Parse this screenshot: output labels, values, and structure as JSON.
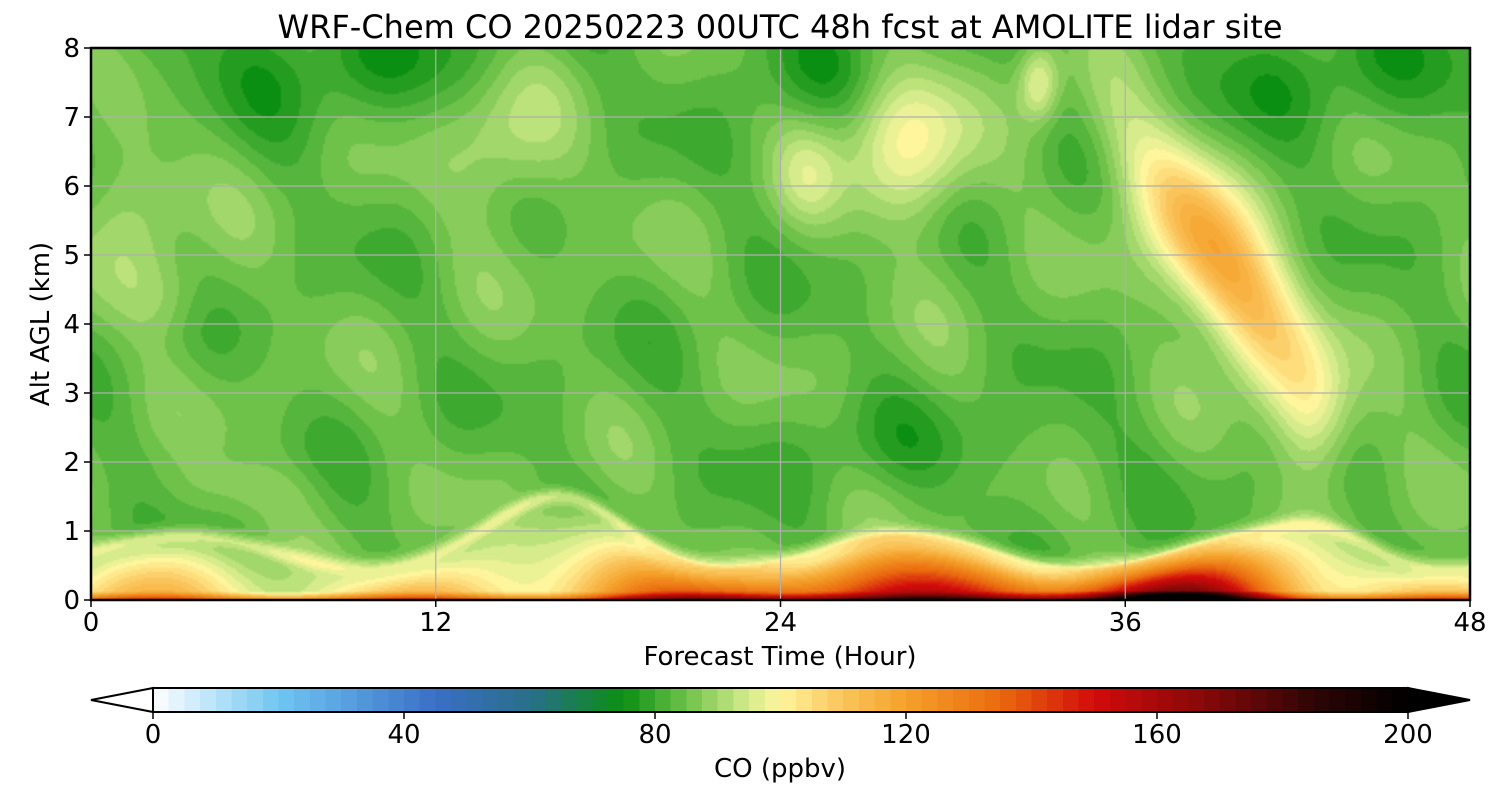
{
  "chart_data": {
    "type": "heatmap",
    "title": "WRF-Chem CO  20250223 00UTC 48h fcst at AMOLITE lidar site",
    "xlabel": "Forecast Time (Hour)",
    "ylabel": "Alt AGL (km)",
    "xlim": [
      0,
      48
    ],
    "ylim": [
      0,
      8
    ],
    "xticks": [
      0,
      12,
      24,
      36,
      48
    ],
    "yticks": [
      0,
      1,
      2,
      3,
      4,
      5,
      6,
      7,
      8
    ],
    "grid": true,
    "colorbar": {
      "label": "CO  (ppbv)",
      "orientation": "horizontal",
      "range": [
        0,
        200
      ],
      "ticks": [
        0,
        40,
        80,
        120,
        160,
        200
      ],
      "extend": "both",
      "stops": [
        {
          "value": 0,
          "color": "#ffffff"
        },
        {
          "value": 20,
          "color": "#6fc6f2"
        },
        {
          "value": 45,
          "color": "#3a6fc6"
        },
        {
          "value": 60,
          "color": "#2a6f8a"
        },
        {
          "value": 75,
          "color": "#0b8f12"
        },
        {
          "value": 85,
          "color": "#6ec24a"
        },
        {
          "value": 95,
          "color": "#d6ec8c"
        },
        {
          "value": 100,
          "color": "#fff59d"
        },
        {
          "value": 110,
          "color": "#fac45a"
        },
        {
          "value": 120,
          "color": "#f4a02a"
        },
        {
          "value": 135,
          "color": "#ea6a0e"
        },
        {
          "value": 150,
          "color": "#d20b0b"
        },
        {
          "value": 170,
          "color": "#7a0808"
        },
        {
          "value": 185,
          "color": "#2e0505"
        },
        {
          "value": 200,
          "color": "#000000"
        }
      ]
    },
    "field_description": "Estimated CO concentration (ppbv) over forecast hour and altitude; background ~80-90 ppbv aloft, surface layer 110-190 ppbv, elevated plume ~120 ppbv near hour 38-40 at 4-6 km",
    "features": [
      {
        "hour": 38.5,
        "alt_km": 5.0,
        "peak_ppbv": 120
      },
      {
        "hour": 28.5,
        "alt_km": 6.6,
        "peak_ppbv": 99
      },
      {
        "hour": 14.5,
        "alt_km": 6.6,
        "peak_ppbv": 93
      },
      {
        "hour": 33.0,
        "alt_km": 7.5,
        "peak_ppbv": 98
      },
      {
        "hour": 16.5,
        "alt_km": 1.3,
        "peak_ppbv": 104
      },
      {
        "hour": 30.0,
        "alt_km": 0.1,
        "peak_ppbv": 170
      },
      {
        "hour": 38.0,
        "alt_km": 0.05,
        "peak_ppbv": 195
      }
    ]
  }
}
